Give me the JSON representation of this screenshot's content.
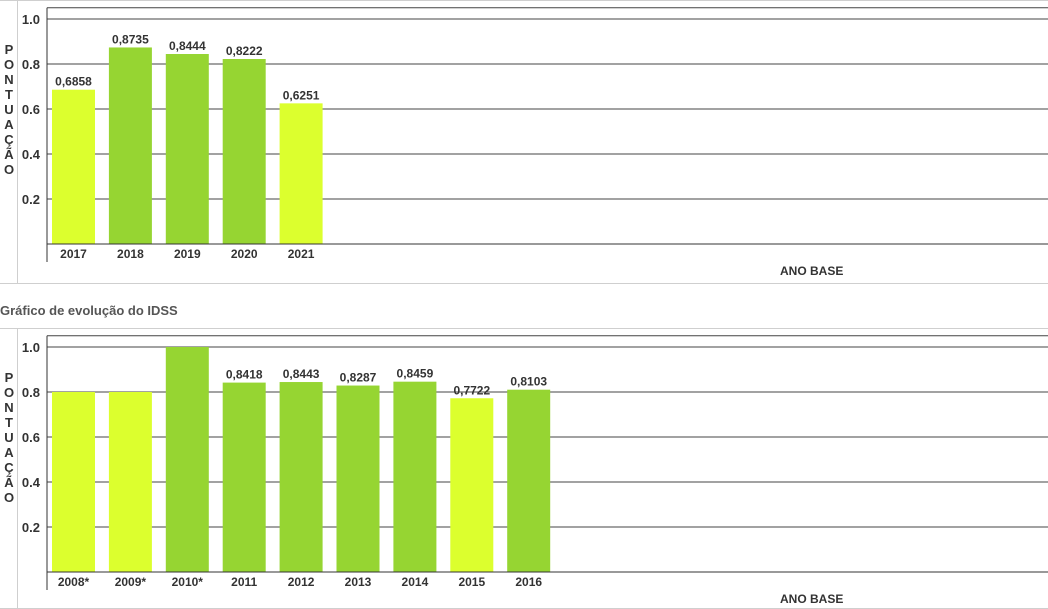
{
  "section_title": "Gráfico de evolução do IDSS",
  "colors": {
    "light": "#dcff2e",
    "green": "#96d532",
    "grid": "#444444"
  },
  "chart_data": [
    {
      "type": "bar",
      "ylabel": "PONTUAÇÃO",
      "xlabel": "ANO BASE",
      "ylim": [
        0,
        1.05
      ],
      "yticks": [
        "0.2",
        "0.4",
        "0.6",
        "0.8",
        "1.0"
      ],
      "categories": [
        "2017",
        "2018",
        "2019",
        "2020",
        "2021"
      ],
      "values": [
        0.6858,
        0.8735,
        0.8444,
        0.8222,
        0.6251
      ],
      "labels": [
        "0,6858",
        "0,8735",
        "0,8444",
        "0,8222",
        "0,6251"
      ],
      "bar_colors": [
        "light",
        "green",
        "green",
        "green",
        "light"
      ]
    },
    {
      "type": "bar",
      "ylabel": "PONTUAÇÃO",
      "xlabel": "ANO BASE",
      "ylim": [
        0,
        1.05
      ],
      "yticks": [
        "0.2",
        "0.4",
        "0.6",
        "0.8",
        "1.0"
      ],
      "categories": [
        "2008*",
        "2009*",
        "2010*",
        "2011",
        "2012",
        "2013",
        "2014",
        "2015",
        "2016"
      ],
      "values": [
        0.8,
        0.8,
        1.0,
        0.8418,
        0.8443,
        0.8287,
        0.8459,
        0.7722,
        0.8103
      ],
      "labels": [
        "",
        "",
        "",
        "0,8418",
        "0,8443",
        "0,8287",
        "0,8459",
        "0,7722",
        "0,8103"
      ],
      "bar_colors": [
        "light",
        "light",
        "green",
        "green",
        "green",
        "green",
        "green",
        "light",
        "green"
      ]
    }
  ]
}
